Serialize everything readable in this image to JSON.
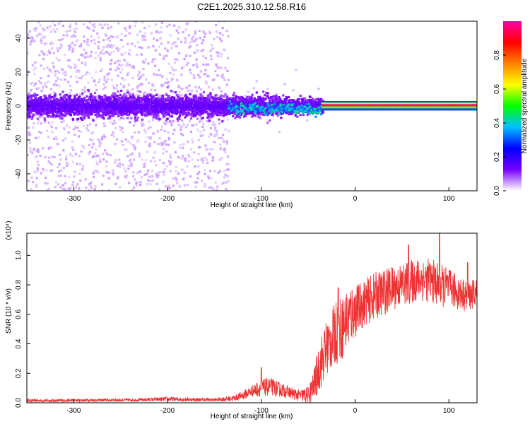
{
  "figure": {
    "title": "C2E1.2025.310.12.58.R16"
  },
  "chart_data": [
    {
      "type": "heatmap",
      "title": "C2E1.2025.310.12.58.R16",
      "xlabel": "Height of straight line (km)",
      "ylabel": "Frequency (Hz)",
      "xlim": [
        -350,
        130
      ],
      "ylim": [
        -50,
        50
      ],
      "xticks": [
        -300,
        -200,
        -100,
        0,
        100
      ],
      "xticklabels": [
        "-300",
        "-200",
        "-100",
        "0",
        "100"
      ],
      "yticks": [
        -40,
        -20,
        0,
        20,
        40
      ],
      "yticklabels": [
        "-40",
        "-20",
        "0",
        "20",
        "40"
      ],
      "colorbar": {
        "label": "Normalized spectral amplitude",
        "range": [
          0.0,
          1.0
        ],
        "ticks": [
          0.0,
          0.2,
          0.4,
          0.6,
          0.8
        ],
        "ticklabels": [
          "0.0",
          "0.2",
          "0.4",
          "0.6",
          "0.8"
        ],
        "colormap": [
          "#ffffff",
          "#7700ff",
          "#0000ff",
          "#00bfff",
          "#00ff00",
          "#ffff00",
          "#ff8000",
          "#ff0000",
          "#ff00aa"
        ]
      },
      "features": [
        {
          "name": "diffuse scatter",
          "x_range": [
            -350,
            -135
          ],
          "freq_range": [
            -50,
            50
          ],
          "amplitude": 0.02
        },
        {
          "name": "broadband core",
          "x_range": [
            -350,
            -35
          ],
          "freq_range": [
            -8,
            8
          ],
          "amplitude": 0.12
        },
        {
          "name": "transition patches",
          "x_range": [
            -135,
            -35
          ],
          "freq_range": [
            -6,
            4
          ],
          "amplitude": 0.3
        },
        {
          "name": "coherent line",
          "x_range": [
            -35,
            130
          ],
          "freq_center": 0.5,
          "amplitude": 1.0
        }
      ]
    },
    {
      "type": "line",
      "xlabel": "Height of straight line (km)",
      "ylabel": "SNR (10 * v/v)",
      "y_multiplier": "(x10⁴)",
      "xlim": [
        -350,
        130
      ],
      "ylim": [
        0,
        1.15
      ],
      "xticks": [
        -300,
        -200,
        -100,
        0,
        100
      ],
      "xticklabels": [
        "-300",
        "-200",
        "-100",
        "0",
        "100"
      ],
      "yticks": [
        0,
        0.2,
        0.4,
        0.6,
        0.8,
        1.0
      ],
      "yticklabels": [
        "0.0",
        "0.2",
        "0.4",
        "0.6",
        "0.8",
        "1.0"
      ],
      "series": [
        {
          "name": "SNR",
          "color": "#ee3333",
          "x": [
            -350,
            -320,
            -290,
            -260,
            -230,
            -200,
            -170,
            -150,
            -130,
            -120,
            -110,
            -100,
            -90,
            -80,
            -70,
            -60,
            -50,
            -45,
            -40,
            -35,
            -30,
            -25,
            -20,
            -15,
            -10,
            -5,
            0,
            10,
            20,
            30,
            40,
            50,
            60,
            70,
            80,
            90,
            100,
            110,
            120,
            130
          ],
          "y": [
            0.015,
            0.015,
            0.018,
            0.018,
            0.02,
            0.025,
            0.022,
            0.02,
            0.03,
            0.05,
            0.08,
            0.1,
            0.11,
            0.09,
            0.07,
            0.05,
            0.05,
            0.1,
            0.2,
            0.3,
            0.38,
            0.42,
            0.48,
            0.5,
            0.55,
            0.6,
            0.62,
            0.68,
            0.72,
            0.75,
            0.78,
            0.8,
            0.82,
            0.84,
            0.83,
            0.8,
            0.78,
            0.75,
            0.72,
            0.75
          ],
          "noise": [
            0.01,
            0.01,
            0.01,
            0.01,
            0.01,
            0.015,
            0.012,
            0.012,
            0.02,
            0.03,
            0.04,
            0.06,
            0.06,
            0.05,
            0.04,
            0.04,
            0.06,
            0.1,
            0.15,
            0.18,
            0.2,
            0.2,
            0.22,
            0.22,
            0.22,
            0.22,
            0.18,
            0.16,
            0.16,
            0.16,
            0.15,
            0.15,
            0.15,
            0.15,
            0.15,
            0.15,
            0.13,
            0.12,
            0.1,
            0.1
          ],
          "peaks": [
            {
              "x": -100,
              "y": 0.24
            },
            {
              "x": -18,
              "y": 0.78
            },
            {
              "x": 90,
              "y": 1.16
            },
            {
              "x": 57,
              "y": 1.07
            },
            {
              "x": 120,
              "y": 0.95
            }
          ]
        }
      ]
    }
  ]
}
